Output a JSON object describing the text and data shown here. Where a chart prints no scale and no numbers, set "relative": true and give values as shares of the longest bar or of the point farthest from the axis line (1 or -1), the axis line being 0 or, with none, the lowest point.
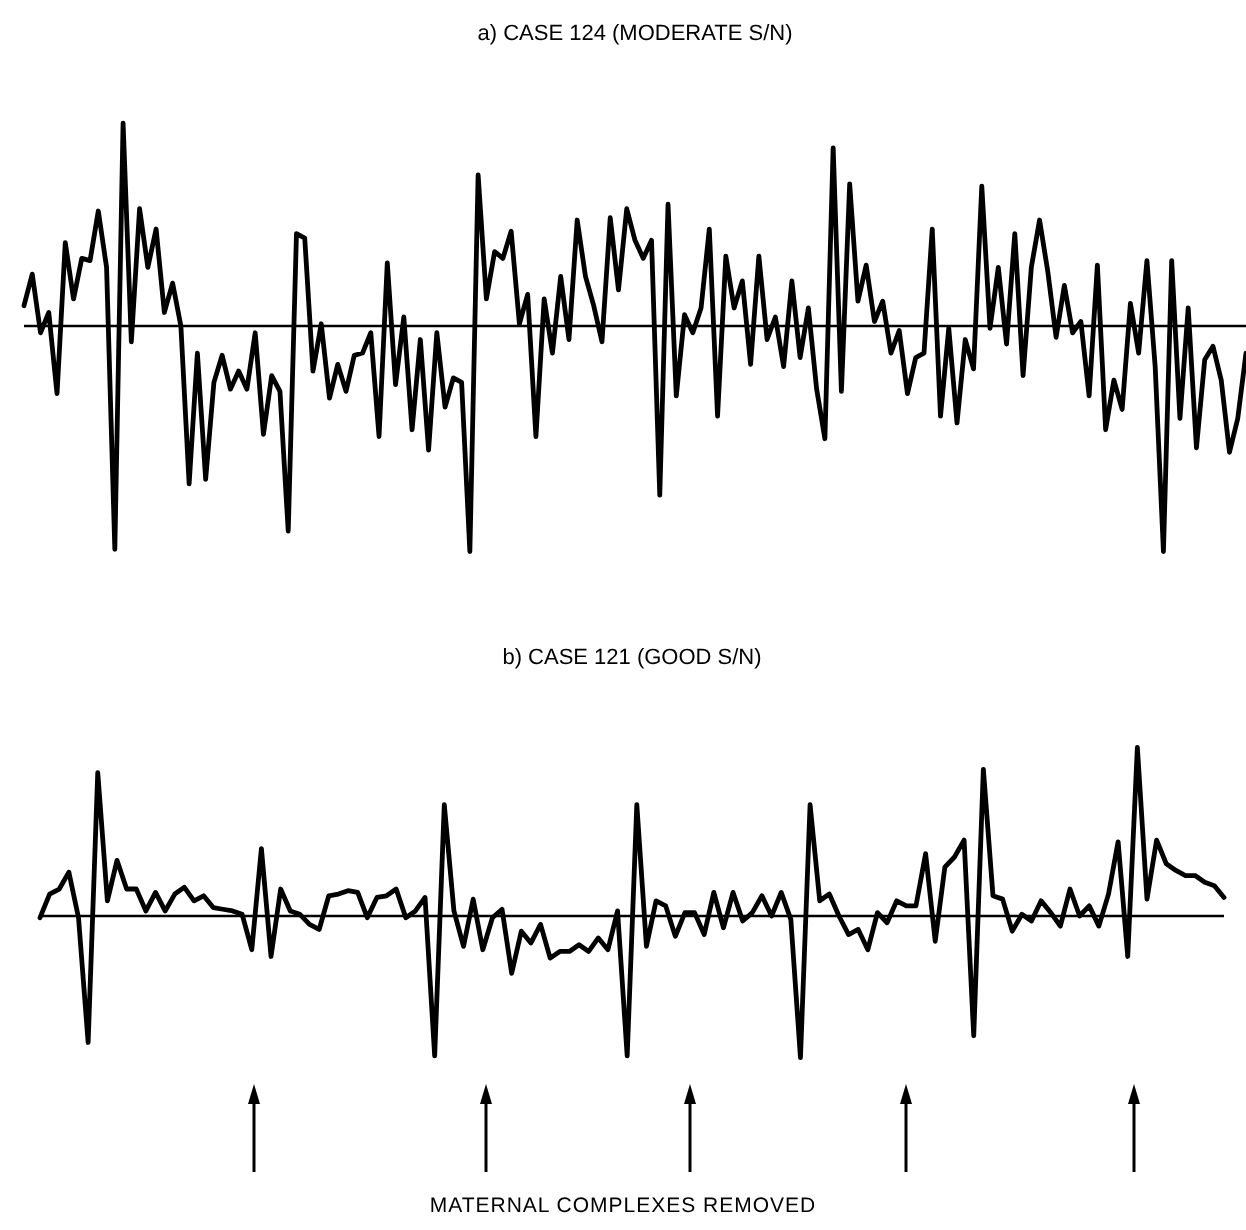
{
  "chart_data": [
    {
      "type": "line",
      "title": "a) CASE 124 (MODERATE S/N)",
      "relative": true,
      "categories": [
        null,
        null,
        null,
        null,
        null,
        null,
        null,
        null,
        null,
        null,
        null,
        null,
        null,
        null,
        null,
        null,
        null,
        null,
        null,
        null,
        null,
        null,
        null,
        null,
        null,
        null,
        null,
        null,
        null,
        null,
        null,
        null,
        null,
        null,
        null,
        null,
        null,
        null,
        null,
        null,
        null,
        null,
        null,
        null,
        null,
        null,
        null,
        null,
        null,
        null,
        null,
        null,
        null,
        null,
        null,
        null,
        null,
        null,
        null,
        null,
        null,
        null,
        null,
        null,
        null,
        null,
        null,
        null,
        null,
        null,
        null,
        null,
        null,
        null,
        null,
        null,
        null,
        null,
        null,
        null,
        null,
        null,
        null,
        null,
        null,
        null,
        null,
        null,
        null,
        null,
        null,
        null,
        null,
        null,
        null,
        null,
        null,
        null,
        null,
        null,
        null,
        null,
        null,
        null,
        null,
        null,
        null,
        null,
        null,
        null,
        null,
        null,
        null,
        null,
        null,
        null,
        null,
        null,
        null,
        null,
        null,
        null,
        null,
        null,
        null,
        null,
        null,
        null,
        null,
        null,
        null,
        null,
        null,
        null,
        null,
        null,
        null,
        null,
        null,
        null,
        null,
        null,
        null,
        null,
        null,
        null,
        null,
        null,
        null
      ],
      "series": [
        {
          "color": "#000000",
          "values": [
            0.09,
            0.23,
            -0.03,
            0.06,
            -0.3,
            0.37,
            0.12,
            0.3,
            0.29,
            0.51,
            0.26,
            -0.99,
            0.9,
            -0.07,
            0.52,
            0.26,
            0.43,
            0.06,
            0.19,
            0,
            -0.7,
            -0.12,
            -0.68,
            -0.25,
            -0.13,
            -0.28,
            -0.2,
            -0.28,
            -0.03,
            -0.48,
            -0.22,
            -0.29,
            -0.91,
            0.41,
            0.39,
            -0.2,
            0.01,
            -0.32,
            -0.17,
            -0.29,
            -0.13,
            -0.12,
            -0.03,
            -0.49,
            0.28,
            -0.26,
            0.04,
            -0.46,
            -0.06,
            -0.55,
            -0.03,
            -0.36,
            -0.23,
            -0.25,
            -1.0,
            0.67,
            0.12,
            0.33,
            0.3,
            0.42,
            0.01,
            0.14,
            -0.49,
            0.12,
            -0.12,
            0.22,
            -0.06,
            0.47,
            0.22,
            0.09,
            -0.07,
            0.48,
            0.16,
            0.52,
            0.38,
            0.3,
            0.38,
            -0.75,
            0.54,
            -0.31,
            0.05,
            -0.03,
            0.08,
            0.43,
            -0.4,
            0.31,
            0.08,
            0.2,
            -0.17,
            0.31,
            -0.06,
            0.04,
            -0.18,
            0.2,
            -0.14,
            0.08,
            -0.28,
            -0.5,
            0.79,
            -0.29,
            0.63,
            0.11,
            0.27,
            0.02,
            0.11,
            -0.12,
            -0.02,
            -0.3,
            -0.14,
            -0.12,
            0.43,
            -0.4,
            -0.01,
            -0.43,
            -0.06,
            -0.19,
            0.62,
            -0.01,
            0.26,
            -0.08,
            0.41,
            -0.22,
            0.26,
            0.47,
            0.24,
            -0.05,
            0.18,
            -0.03,
            0.02,
            -0.31,
            0.27,
            -0.46,
            -0.24,
            -0.37,
            0.1,
            -0.12,
            0.29,
            -0.18,
            -1.0,
            0.29,
            -0.41,
            0.08,
            -0.54,
            -0.15,
            -0.09,
            -0.24,
            -0.56,
            -0.41,
            -0.12
          ]
        }
      ],
      "ref_lines": [
        {
          "axis": "y",
          "value": 0
        }
      ]
    },
    {
      "type": "line",
      "title": "b) CASE 121 (GOOD S/N)",
      "relative": true,
      "categories": [
        null,
        null,
        null,
        null,
        null,
        null,
        null,
        null,
        null,
        null,
        null,
        null,
        null,
        null,
        null,
        null,
        null,
        null,
        null,
        null,
        null,
        null,
        null,
        null,
        null,
        null,
        null,
        null,
        null,
        null,
        null,
        null,
        null,
        null,
        null,
        null,
        null,
        null,
        null,
        null,
        null,
        null,
        null,
        null,
        null,
        null,
        null,
        null,
        null,
        null,
        null,
        null,
        null,
        null,
        null,
        null,
        null,
        null,
        null,
        null,
        null,
        null,
        null,
        null,
        null,
        null,
        null,
        null,
        null,
        null,
        null,
        null,
        null,
        null,
        null,
        null,
        null,
        null,
        null,
        null,
        null,
        null,
        null,
        null,
        null,
        null,
        null,
        null,
        null,
        null,
        null,
        null,
        null,
        null,
        null,
        null,
        null,
        null,
        null,
        null,
        null,
        null,
        null,
        null,
        null,
        null,
        null,
        null,
        null,
        null,
        null,
        null,
        null,
        null,
        null,
        null,
        null,
        null,
        null,
        null,
        null,
        null,
        null,
        null
      ],
      "series": [
        {
          "color": "#000000",
          "values": [
            -0.01,
            0.13,
            0.16,
            0.26,
            -0.01,
            -0.75,
            0.85,
            0.09,
            0.33,
            0.16,
            0.16,
            0.03,
            0.14,
            0.03,
            0.13,
            0.17,
            0.09,
            0.12,
            0.05,
            0.04,
            0.03,
            0.01,
            -0.2,
            0.4,
            -0.24,
            0.16,
            0.03,
            0.01,
            -0.05,
            -0.08,
            0.12,
            0.13,
            0.15,
            0.14,
            -0.01,
            0.11,
            0.12,
            0.16,
            -0.01,
            0.03,
            0.11,
            -0.83,
            0.66,
            0.03,
            -0.18,
            0.1,
            -0.2,
            -0.01,
            0.04,
            -0.34,
            -0.09,
            -0.16,
            -0.05,
            -0.25,
            -0.21,
            -0.21,
            -0.17,
            -0.21,
            -0.13,
            -0.2,
            0.03,
            -0.83,
            0.66,
            -0.18,
            0.09,
            0.06,
            -0.12,
            0.02,
            0.02,
            -0.11,
            0.14,
            -0.07,
            0.14,
            -0.03,
            0.02,
            0.12,
            0,
            0.14,
            -0.02,
            -0.84,
            0.66,
            0.09,
            0.13,
            0,
            -0.11,
            -0.08,
            -0.2,
            0.02,
            -0.04,
            0.09,
            0.06,
            0.06,
            0.37,
            -0.15,
            0.29,
            0.35,
            0.45,
            -0.71,
            0.87,
            0.12,
            0.1,
            -0.09,
            0.01,
            -0.03,
            0.09,
            0.02,
            -0.06,
            0.16,
            0,
            0.06,
            -0.06,
            0.13,
            0.44,
            -0.24,
            1.0,
            0.1,
            0.45,
            0.31,
            0.27,
            0.24,
            0.24,
            0.2,
            0.18,
            0.11
          ]
        }
      ],
      "ref_lines": [
        {
          "axis": "y",
          "value": 0
        }
      ],
      "annotations": [
        "MATERNAL COMPLEXES REMOVED"
      ]
    }
  ]
}
